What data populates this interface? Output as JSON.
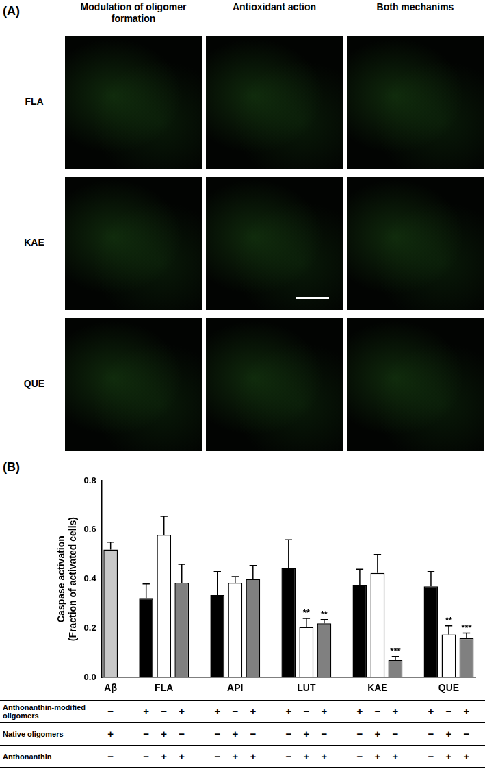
{
  "panel_a": {
    "label": "(A)",
    "columns": [
      "Modulation of oligomer formation",
      "Antioxidant action",
      "Both mechanims"
    ],
    "rows": [
      "FLA",
      "KAE",
      "QUE"
    ]
  },
  "chart_data": {
    "type": "bar",
    "label": "(B)",
    "categories": [
      "Aβ",
      null,
      null,
      "FLA",
      null,
      null,
      null,
      "API",
      null,
      null,
      null,
      "LUT",
      null,
      null,
      null,
      "KAE",
      null,
      null,
      null,
      "QUE",
      null
    ],
    "values": [
      0.52,
      null,
      0.32,
      0.58,
      0.385,
      null,
      0.335,
      0.385,
      0.4,
      null,
      0.445,
      0.205,
      0.22,
      null,
      0.375,
      0.425,
      0.07,
      null,
      0.37,
      0.175,
      0.16
    ],
    "errors": [
      0.03,
      null,
      0.06,
      0.075,
      0.075,
      null,
      0.095,
      0.025,
      0.055,
      null,
      0.115,
      0.035,
      0.015,
      null,
      0.065,
      0.075,
      0.015,
      null,
      0.06,
      0.035,
      0.02
    ],
    "significance": [
      null,
      null,
      null,
      null,
      null,
      null,
      null,
      null,
      null,
      null,
      null,
      "**",
      "**",
      null,
      null,
      null,
      "***",
      null,
      null,
      "**",
      "***"
    ],
    "colors": [
      "#c8c8c8",
      null,
      "#000000",
      "#ffffff",
      "#808080",
      null,
      "#000000",
      "#ffffff",
      "#808080",
      null,
      "#000000",
      "#ffffff",
      "#808080",
      null,
      "#000000",
      "#ffffff",
      "#808080",
      null,
      "#000000",
      "#ffffff",
      "#808080"
    ],
    "y_label": [
      "Caspase activation",
      "(Fraction of activated cells)"
    ],
    "ylim": [
      0,
      0.8
    ],
    "yticks": [
      {
        "value": 0,
        "label": "0.0"
      },
      0.2,
      0.4,
      0.6,
      0.8
    ],
    "grid": false
  },
  "condition_table": {
    "rows": [
      {
        "label": "Anthonanthin-modified oligomers",
        "marks": [
          "−",
          null,
          "+",
          "−",
          "+",
          null,
          "+",
          "−",
          "+",
          null,
          "+",
          "−",
          "+",
          null,
          "+",
          "−",
          "+",
          null,
          "+",
          "−",
          "+"
        ]
      },
      {
        "label": "Native oligomers",
        "marks": [
          "+",
          null,
          "−",
          "+",
          "−",
          null,
          "−",
          "+",
          "−",
          null,
          "−",
          "+",
          "−",
          null,
          "−",
          "+",
          "−",
          null,
          "−",
          "+",
          "−"
        ]
      },
      {
        "label": "Anthonanthin",
        "marks": [
          "−",
          null,
          "−",
          "+",
          "+",
          null,
          "−",
          "+",
          "+",
          null,
          "−",
          "+",
          "+",
          null,
          "−",
          "+",
          "+",
          null,
          "−",
          "+",
          "+"
        ]
      }
    ]
  }
}
